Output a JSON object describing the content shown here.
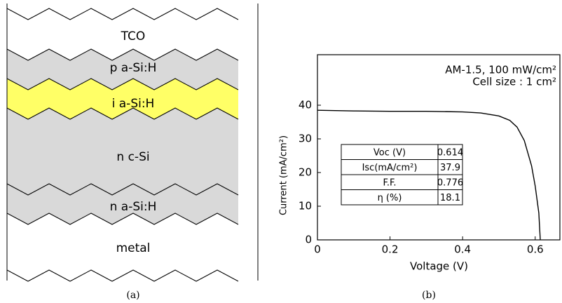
{
  "diagram": {
    "layers": [
      "TCO",
      "p a-Si:H",
      "i a-Si:H",
      "n c-Si",
      "n a-Si:H",
      "metal"
    ],
    "caption": "(a)"
  },
  "chart_data": {
    "type": "line",
    "caption": "(b)",
    "annotations": [
      "AM-1.5, 100 mW/cm²",
      "Cell size : 1 cm²"
    ],
    "xlabel": "Voltage (V)",
    "ylabel": "Current (mA/cm²)",
    "x": [
      0,
      0.1,
      0.2,
      0.3,
      0.4,
      0.45,
      0.5,
      0.53,
      0.55,
      0.57,
      0.59,
      0.6,
      0.61,
      0.614
    ],
    "values": [
      38.5,
      38.3,
      38.2,
      38.2,
      38.0,
      37.7,
      36.8,
      35.5,
      33.5,
      29.5,
      22,
      16,
      8,
      0
    ],
    "color": "#000000",
    "xlim": [
      0,
      0.67
    ],
    "ylim": [
      0,
      55
    ],
    "xticks": [
      0,
      0.2,
      0.4,
      0.6
    ],
    "yticks": [
      0,
      10,
      20,
      30,
      40
    ],
    "table": {
      "rows": [
        [
          "Voc (V)",
          "0.614"
        ],
        [
          "Isc(mA/cm²)",
          "37.9"
        ],
        [
          "F.F.",
          "0.776"
        ],
        [
          "η (%)",
          "18.1"
        ]
      ]
    }
  }
}
